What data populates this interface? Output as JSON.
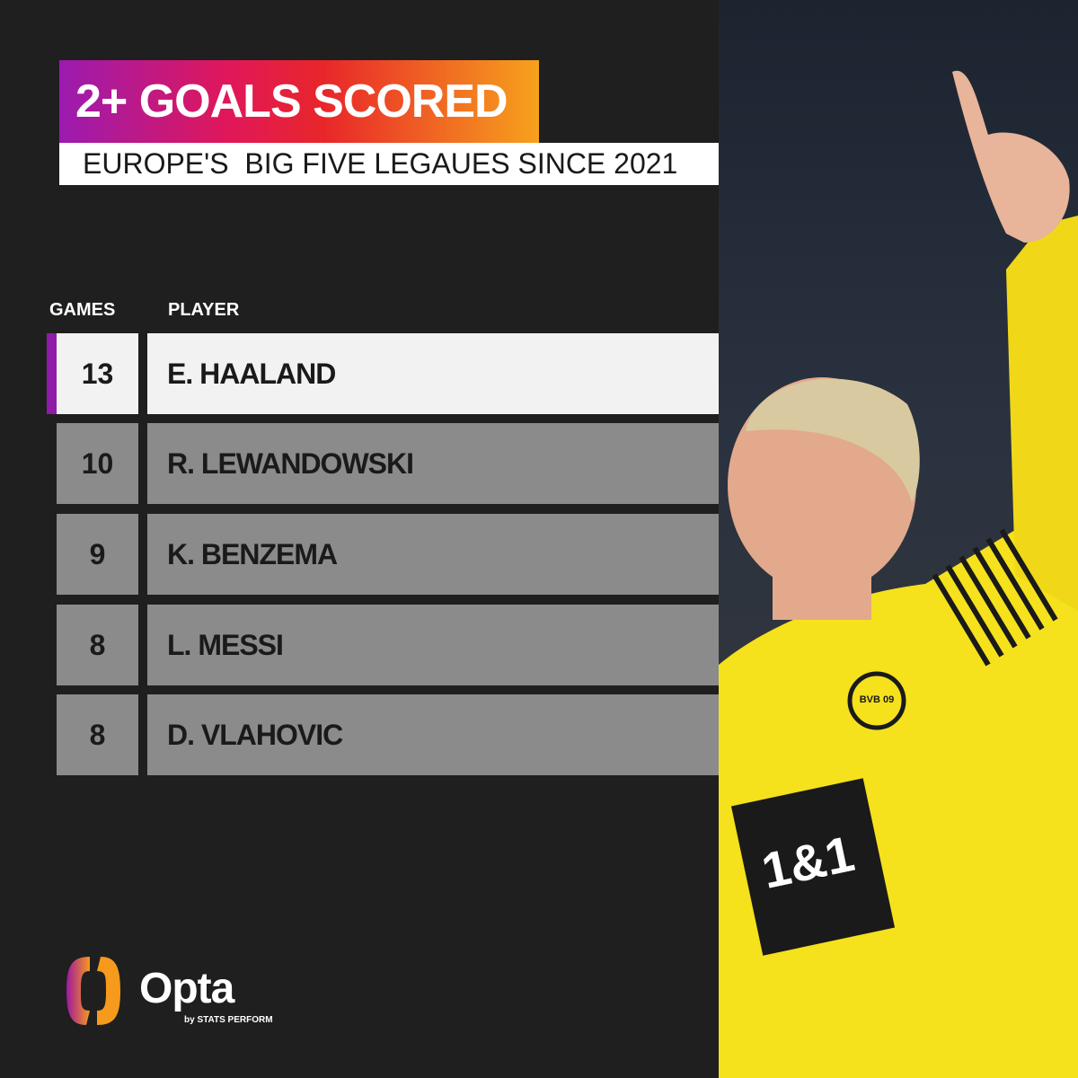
{
  "title": "2+ GOALS SCORED",
  "subtitle": "EUROPE'S  BIG FIVE LEGAUES SINCE 2021",
  "headers": {
    "games": "GAMES",
    "player": "PLAYER"
  },
  "rows": [
    {
      "games": "13",
      "player": "E. HAALAND"
    },
    {
      "games": "10",
      "player": "R. LEWANDOWSKI"
    },
    {
      "games": "9",
      "player": "K. BENZEMA"
    },
    {
      "games": "8",
      "player": "L. MESSI"
    },
    {
      "games": "8",
      "player": "D. VLAHOVIC"
    }
  ],
  "photo": {
    "shirt_sponsor": "1&1",
    "badge": "BVB 09"
  },
  "logo": {
    "name": "Opta",
    "tagline": "by STATS PERFORM"
  },
  "colors": {
    "accent": "#8e1ca8",
    "background": "#1f1f1f",
    "highlight_row": "#f2f2f2",
    "row": "#8b8b8b",
    "jersey": "#f5e11c"
  }
}
